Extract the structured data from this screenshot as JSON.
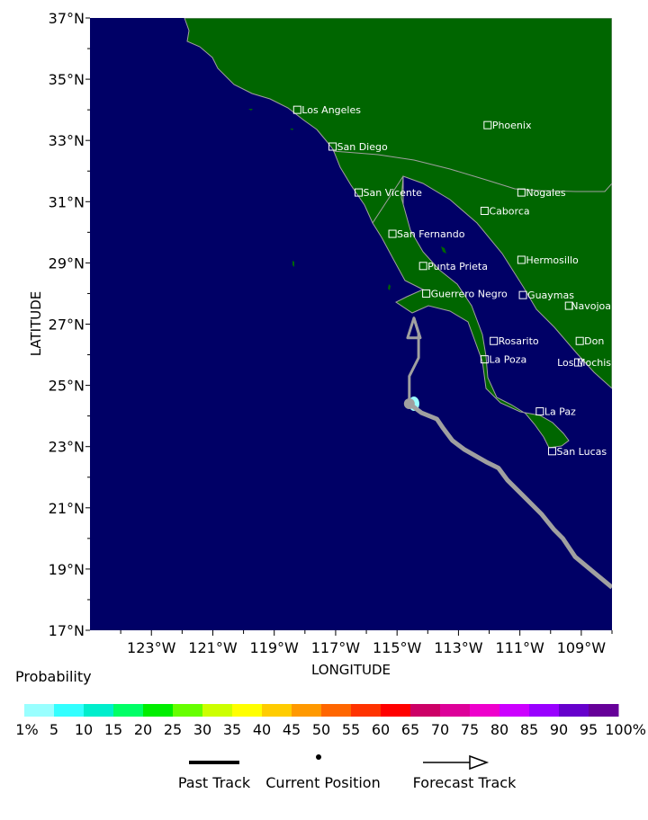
{
  "map": {
    "x_axis_label": "LONGITUDE",
    "y_axis_label": "LATITUDE",
    "lat_ticks": [
      "17°N",
      "19°N",
      "21°N",
      "23°N",
      "25°N",
      "27°N",
      "29°N",
      "31°N",
      "33°N",
      "35°N",
      "37°N"
    ],
    "lon_ticks": [
      "123°W",
      "121°W",
      "119°W",
      "117°W",
      "115°W",
      "113°W",
      "111°W",
      "109°W"
    ],
    "colors": {
      "ocean": "#000066",
      "land": "#006600",
      "border": "#a0a0a0",
      "track": "#a0a0a0"
    },
    "cities": [
      {
        "name": "Los Angeles",
        "lat": 34.0,
        "lon": -118.25
      },
      {
        "name": "Phoenix",
        "lat": 33.5,
        "lon": -112.05
      },
      {
        "name": "San Diego",
        "lat": 32.8,
        "lon": -117.1
      },
      {
        "name": "San Vicente",
        "lat": 31.3,
        "lon": -116.25
      },
      {
        "name": "Nogales",
        "lat": 31.3,
        "lon": -110.95
      },
      {
        "name": "Caborca",
        "lat": 30.7,
        "lon": -112.15
      },
      {
        "name": "San Fernando",
        "lat": 29.95,
        "lon": -115.15
      },
      {
        "name": "Punta Prieta",
        "lat": 28.9,
        "lon": -114.15
      },
      {
        "name": "Hermosillo",
        "lat": 29.1,
        "lon": -110.95
      },
      {
        "name": "Guerrero Negro",
        "lat": 28.0,
        "lon": -114.05
      },
      {
        "name": "Guaymas",
        "lat": 27.95,
        "lon": -110.9
      },
      {
        "name": "Navojoa",
        "lat": 27.6,
        "lon": -109.4
      },
      {
        "name": "Rosarito",
        "lat": 26.45,
        "lon": -111.85
      },
      {
        "name": "Don",
        "lat": 26.45,
        "lon": -109.05
      },
      {
        "name": "La Poza",
        "lat": 25.85,
        "lon": -112.15
      },
      {
        "name": "Los Mochis",
        "lat": 25.75,
        "lon": -109.1
      },
      {
        "name": "La Paz",
        "lat": 24.15,
        "lon": -110.35
      },
      {
        "name": "San Lucas",
        "lat": 22.85,
        "lon": -109.95
      }
    ],
    "past_track": [
      [
        -108,
        18.4
      ],
      [
        -108.6,
        18.9
      ],
      [
        -109.2,
        19.4
      ],
      [
        -109.6,
        20.0
      ],
      [
        -109.9,
        20.3
      ],
      [
        -110.3,
        20.8
      ],
      [
        -110.9,
        21.4
      ],
      [
        -111.4,
        21.9
      ],
      [
        -111.7,
        22.3
      ],
      [
        -112.1,
        22.5
      ],
      [
        -112.8,
        22.9
      ],
      [
        -113.2,
        23.2
      ],
      [
        -113.5,
        23.6
      ],
      [
        -113.7,
        23.9
      ],
      [
        -114.2,
        24.1
      ],
      [
        -114.6,
        24.4
      ]
    ],
    "forecast_track": [
      [
        -114.6,
        24.4
      ],
      [
        -114.6,
        25.3
      ],
      [
        -114.3,
        25.9
      ],
      [
        -114.3,
        26.7
      ],
      [
        -114.45,
        27.2
      ]
    ],
    "current_position": {
      "lat": 24.4,
      "lon": -114.6
    },
    "probability_area": {
      "lat": 24.4,
      "lon": -114.45,
      "probability_pct": 1
    }
  },
  "legend": {
    "title": "Probability",
    "scale_labels": [
      "1%",
      "5",
      "10",
      "15",
      "20",
      "25",
      "30",
      "35",
      "40",
      "45",
      "50",
      "55",
      "60",
      "65",
      "70",
      "75",
      "80",
      "85",
      "90",
      "95",
      "100%"
    ],
    "colors": [
      "#99ffff",
      "#33ffff",
      "#00eecc",
      "#00ff66",
      "#00ee00",
      "#66ff00",
      "#ccff00",
      "#ffff00",
      "#ffcc00",
      "#ff9900",
      "#ff6600",
      "#ff3300",
      "#ff0000",
      "#cc0066",
      "#dd0099",
      "#ee00cc",
      "#cc00ff",
      "#9900ff",
      "#6600cc",
      "#660099"
    ],
    "past_track_label": "Past Track",
    "current_position_label": "Current Position",
    "forecast_track_label": "Forecast Track"
  }
}
